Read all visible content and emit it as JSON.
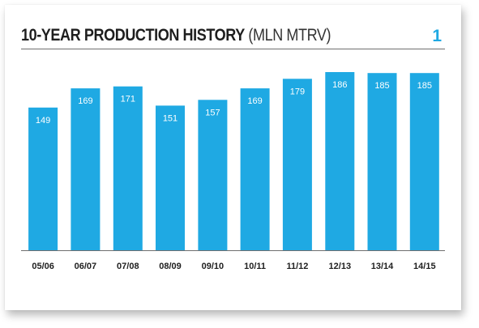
{
  "header": {
    "title": "10-YEAR PRODUCTION HISTORY",
    "unit": "(MLN MTRV)",
    "figure_number": "1"
  },
  "colors": {
    "bar": "#1fa9e3",
    "bar_label": "#ffffff",
    "axis": "#6f6f6f",
    "tick_label": "#1e1e1e",
    "accent": "#1fa9e3"
  },
  "chart_data": {
    "type": "bar",
    "title": "10-YEAR PRODUCTION HISTORY (MLN MTRV)",
    "xlabel": "",
    "ylabel": "",
    "categories": [
      "05/06",
      "06/07",
      "07/08",
      "08/09",
      "09/10",
      "10/11",
      "11/12",
      "12/13",
      "13/14",
      "14/15"
    ],
    "values": [
      149,
      169,
      171,
      151,
      157,
      169,
      179,
      186,
      185,
      185
    ],
    "data_labels": true,
    "ylim": [
      0,
      186
    ],
    "grid": false,
    "legend": "none"
  }
}
